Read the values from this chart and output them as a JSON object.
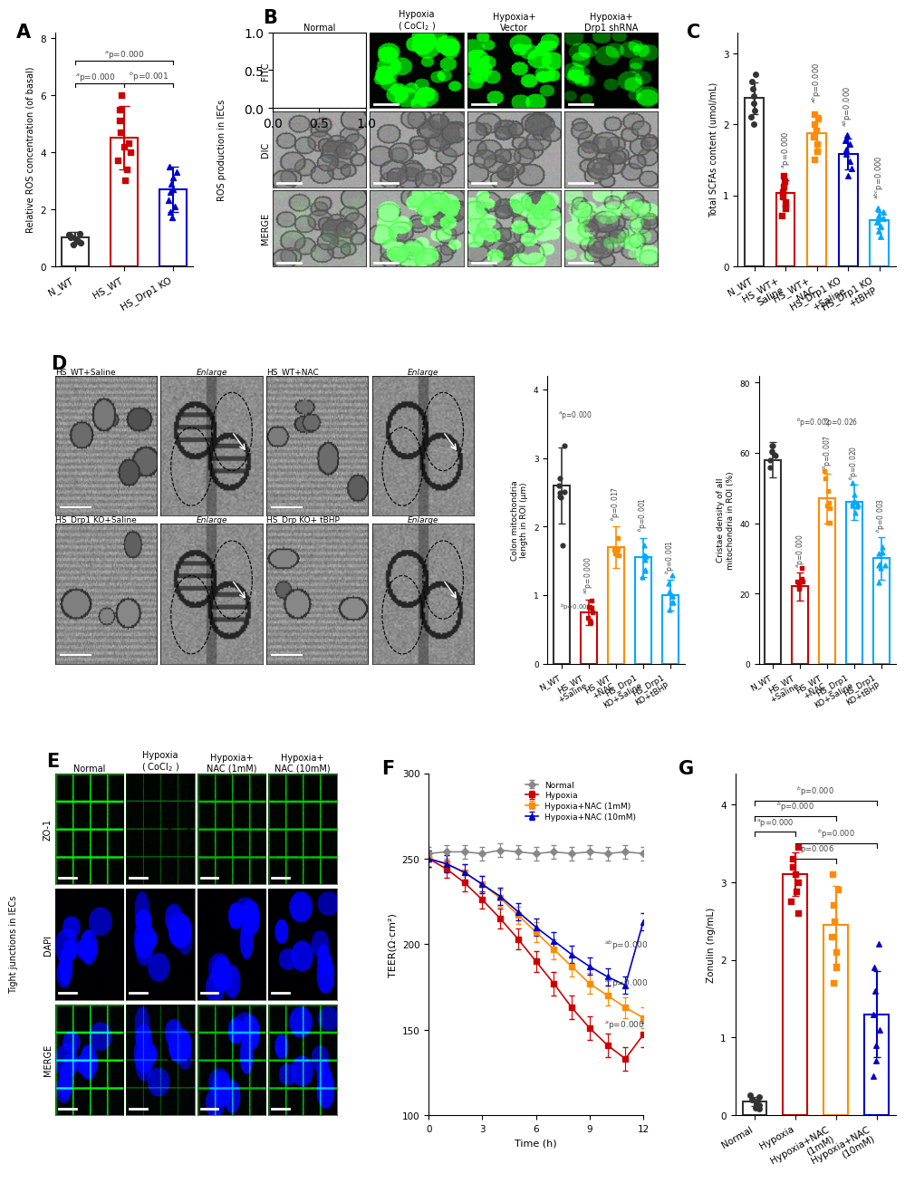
{
  "panel_A": {
    "ylabel": "Relative ROS concentration (of basal)",
    "groups": [
      "N_WT",
      "HS_WT",
      "HS_Drp1 KO"
    ],
    "means": [
      1.0,
      4.5,
      2.7
    ],
    "errors": [
      0.2,
      1.1,
      0.8
    ],
    "colors": [
      "#333333",
      "#cc0000",
      "#0000cc"
    ],
    "ylim": [
      0,
      8
    ],
    "yticks": [
      0,
      2,
      4,
      6,
      8
    ],
    "scatter_N_WT": [
      0.75,
      0.82,
      0.88,
      0.95,
      1.0,
      1.05,
      1.1,
      1.15
    ],
    "scatter_HS_WT": [
      3.0,
      3.4,
      3.7,
      4.0,
      4.3,
      4.7,
      5.1,
      5.5,
      6.0,
      4.2
    ],
    "scatter_HS_Drp1KO": [
      1.7,
      1.9,
      2.1,
      2.3,
      2.6,
      2.9,
      3.1,
      3.3,
      3.5,
      2.7
    ]
  },
  "panel_C": {
    "ylabel": "Total SCFAs content (umol/mL)",
    "groups": [
      "N_WT",
      "HS_WT+Saline",
      "HS_WT+NAC",
      "HS_Drp1 KO+Saline",
      "HS_Drp1 KO+tBHP"
    ],
    "means": [
      2.37,
      1.03,
      1.88,
      1.58,
      0.65
    ],
    "errors": [
      0.22,
      0.18,
      0.25,
      0.22,
      0.12
    ],
    "colors": [
      "#333333",
      "#cc0000",
      "#ff8c00",
      "#0000cc",
      "#00aaff"
    ],
    "ylim": [
      0,
      3
    ],
    "yticks": [
      0,
      1,
      2,
      3
    ],
    "scatter_NWT": [
      2.0,
      2.1,
      2.2,
      2.3,
      2.4,
      2.5,
      2.6,
      2.7
    ],
    "scatter_HS_Saline": [
      0.72,
      0.82,
      0.9,
      0.98,
      1.05,
      1.12,
      1.2,
      1.28
    ],
    "scatter_HS_NAC": [
      1.5,
      1.62,
      1.72,
      1.82,
      1.92,
      2.0,
      2.08,
      2.15
    ],
    "scatter_KO_Saline": [
      1.28,
      1.38,
      1.48,
      1.58,
      1.65,
      1.72,
      1.78,
      1.85
    ],
    "scatter_KO_tBHP": [
      0.42,
      0.5,
      0.56,
      0.62,
      0.67,
      0.72,
      0.77,
      0.82
    ]
  },
  "panel_D_mitolen": {
    "ylabel": "Colon mitochondria\nlength in ROI (μm)",
    "means": [
      2.6,
      0.75,
      1.7,
      1.55,
      1.0
    ],
    "errors": [
      0.55,
      0.18,
      0.3,
      0.28,
      0.22
    ],
    "colors": [
      "#333333",
      "#cc0000",
      "#ff8c00",
      "#00aaff",
      "#00aaff"
    ],
    "ylim": [
      0,
      4
    ],
    "yticks": [
      0,
      1,
      2,
      3,
      4
    ],
    "sig_D1_rotated": [
      "",
      "abp=0.000",
      "bp=0.017",
      "bp=0.001",
      "bp=0.001"
    ],
    "sig_top": "ap=0.000"
  },
  "panel_D_cristae": {
    "ylabel": "Cristae density of all\nmitochondria in ROI (%)",
    "means": [
      58,
      22,
      47,
      46,
      30
    ],
    "errors": [
      5,
      4,
      7,
      5,
      6
    ],
    "colors": [
      "#333333",
      "#cc0000",
      "#ff8c00",
      "#00aaff",
      "#00aaff"
    ],
    "ylim": [
      0,
      80
    ],
    "yticks": [
      0,
      20,
      40,
      60,
      80
    ],
    "sig_rotated": [
      "",
      "ap=0.000",
      "bp=0.007",
      "bp=0.020",
      "bp=0.003"
    ],
    "sig_extra": [
      "bp=0.002",
      "bp=0.026"
    ]
  },
  "panel_F": {
    "xlabel": "Time (h)",
    "ylabel": "TEER(Ω·cm²)",
    "ylim": [
      100,
      300
    ],
    "yticks": [
      100,
      150,
      200,
      250,
      300
    ],
    "xticks": [
      0,
      3,
      6,
      9,
      12
    ],
    "legend_labels": [
      "Normal",
      "Hypoxia",
      "Hypoxia+NAC (1mM)",
      "Hypoxia+NAC (10mM)"
    ],
    "colors": [
      "#888888",
      "#cc0000",
      "#ff8c00",
      "#0000cc"
    ],
    "normal_y": [
      253,
      254,
      254,
      253,
      255,
      254,
      253,
      254,
      253,
      254,
      253,
      254,
      253
    ],
    "hypoxia_y": [
      250,
      244,
      236,
      226,
      215,
      203,
      190,
      177,
      163,
      151,
      141,
      133,
      147
    ],
    "nac1_y": [
      250,
      247,
      242,
      235,
      227,
      217,
      207,
      197,
      187,
      177,
      170,
      163,
      157
    ],
    "nac10_y": [
      250,
      247,
      242,
      235,
      228,
      219,
      210,
      202,
      194,
      187,
      181,
      176,
      213
    ],
    "err_normal": [
      4,
      4,
      4,
      4,
      4,
      4,
      4,
      4,
      4,
      4,
      4,
      4,
      4
    ],
    "err_hypoxia": [
      5,
      5,
      5,
      5,
      6,
      6,
      6,
      7,
      7,
      7,
      7,
      7,
      7
    ],
    "err_nac1": [
      5,
      5,
      5,
      5,
      5,
      5,
      6,
      6,
      6,
      6,
      6,
      6,
      6
    ],
    "err_nac10": [
      5,
      5,
      5,
      5,
      5,
      5,
      5,
      5,
      5,
      5,
      5,
      5,
      5
    ]
  },
  "panel_G": {
    "ylabel": "Zonulin (ng/mL)",
    "groups": [
      "Normal",
      "Hypoxia",
      "Hypoxia+NAC\n(1mM)",
      "Hypoxia+NAC\n(10mM)"
    ],
    "means": [
      0.18,
      3.1,
      2.45,
      1.3
    ],
    "errors": [
      0.06,
      0.28,
      0.5,
      0.55
    ],
    "colors": [
      "#333333",
      "#cc0000",
      "#ff8c00",
      "#0000cc"
    ],
    "ylim": [
      0,
      4
    ],
    "yticks": [
      0,
      1,
      2,
      3,
      4
    ],
    "scatter_Normal": [
      0.08,
      0.1,
      0.13,
      0.16,
      0.18,
      0.2,
      0.23,
      0.26
    ],
    "scatter_Hypoxia": [
      2.6,
      2.75,
      2.88,
      3.0,
      3.1,
      3.2,
      3.3,
      3.45
    ],
    "scatter_NAC1": [
      1.7,
      1.9,
      2.1,
      2.3,
      2.5,
      2.7,
      2.9,
      3.1
    ],
    "scatter_NAC10": [
      0.5,
      0.7,
      0.9,
      1.1,
      1.3,
      1.6,
      1.9,
      2.2
    ]
  },
  "bg_color": "#ffffff"
}
